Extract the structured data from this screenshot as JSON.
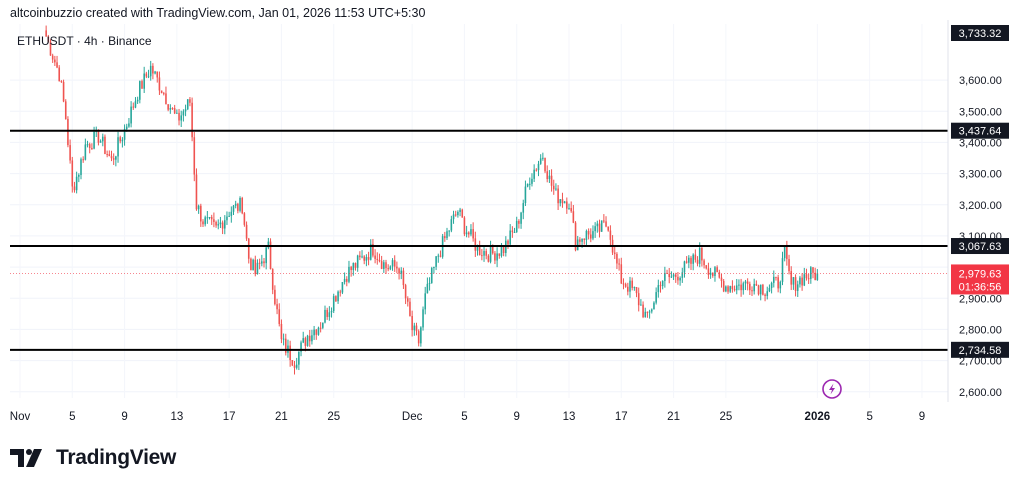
{
  "header": {
    "caption": "altcoinbuzzio created with TradingView.com, Jan 01, 2026 11:53 UTC+5:30"
  },
  "branding": {
    "name": "TradingView"
  },
  "icons": {
    "brand": "tradingview-logo-icon",
    "event": "lightning-bolt-icon"
  },
  "colors": {
    "up": "#26a69a",
    "down": "#ef5350",
    "level_line": "#000000",
    "last_price": "#f23645"
  },
  "chart_data": {
    "type": "candlestick",
    "symbol_label": "ETHUSDT · 4h · Binance",
    "timeframe": "4h",
    "ylim": [
      2580,
      3780
    ],
    "y_ticks": [
      2600,
      2700,
      2800,
      2900,
      3000,
      3100,
      3200,
      3300,
      3400,
      3500,
      3600
    ],
    "y_tick_labels": [
      "2,600.00",
      "2,700.00",
      "2,800.00",
      "2,900.00",
      "",
      "3,100.00",
      "3,200.00",
      "3,300.00",
      "3,400.00",
      "3,500.00",
      "3,600.00"
    ],
    "x_axis": {
      "start": "2025-11-01",
      "end": "2026-01-10",
      "ticks": [
        {
          "date": "2025-11-01",
          "label": "Nov"
        },
        {
          "date": "2025-11-05",
          "label": "5"
        },
        {
          "date": "2025-11-09",
          "label": "9"
        },
        {
          "date": "2025-11-13",
          "label": "13"
        },
        {
          "date": "2025-11-17",
          "label": "17"
        },
        {
          "date": "2025-11-21",
          "label": "21"
        },
        {
          "date": "2025-11-25",
          "label": "25"
        },
        {
          "date": "2025-12-01",
          "label": "Dec"
        },
        {
          "date": "2025-12-05",
          "label": "5"
        },
        {
          "date": "2025-12-09",
          "label": "9"
        },
        {
          "date": "2025-12-13",
          "label": "13"
        },
        {
          "date": "2025-12-17",
          "label": "17"
        },
        {
          "date": "2025-12-21",
          "label": "21"
        },
        {
          "date": "2025-12-25",
          "label": "25"
        },
        {
          "date": "2026-01-01",
          "label": "2026"
        },
        {
          "date": "2026-01-05",
          "label": "5"
        },
        {
          "date": "2026-01-09",
          "label": "9"
        }
      ]
    },
    "levels": [
      {
        "value": 3437.64,
        "label": "3,437.64"
      },
      {
        "value": 3067.63,
        "label": "3,067.63"
      },
      {
        "value": 2734.58,
        "label": "2,734.58"
      }
    ],
    "price_high_label": {
      "value": 3733.32,
      "label": "3,733.32"
    },
    "last_price": {
      "value": 2979.63,
      "label": "2,979.63",
      "countdown": "01:36:56"
    },
    "close_path": [
      [
        "2025-11-03",
        3740
      ],
      [
        "2025-11-04",
        3620
      ],
      [
        "2025-11-04T12:00",
        3480
      ],
      [
        "2025-11-05",
        3250
      ],
      [
        "2025-11-05T12:00",
        3310
      ],
      [
        "2025-11-06",
        3390
      ],
      [
        "2025-11-07",
        3420
      ],
      [
        "2025-11-08",
        3340
      ],
      [
        "2025-11-09",
        3440
      ],
      [
        "2025-11-10",
        3560
      ],
      [
        "2025-11-11",
        3640
      ],
      [
        "2025-11-12",
        3560
      ],
      [
        "2025-11-13",
        3470
      ],
      [
        "2025-11-14",
        3530
      ],
      [
        "2025-11-14T12:00",
        3200
      ],
      [
        "2025-11-15",
        3150
      ],
      [
        "2025-11-16",
        3120
      ],
      [
        "2025-11-17",
        3180
      ],
      [
        "2025-11-18",
        3200
      ],
      [
        "2025-11-18T12:00",
        3030
      ],
      [
        "2025-11-19",
        2980
      ],
      [
        "2025-11-20",
        3060
      ],
      [
        "2025-11-20T12:00",
        2900
      ],
      [
        "2025-11-21",
        2760
      ],
      [
        "2025-11-22",
        2700
      ],
      [
        "2025-11-23",
        2780
      ],
      [
        "2025-11-24",
        2820
      ],
      [
        "2025-11-25",
        2900
      ],
      [
        "2025-11-26",
        2980
      ],
      [
        "2025-11-27",
        3020
      ],
      [
        "2025-11-28",
        3060
      ],
      [
        "2025-11-29",
        3000
      ],
      [
        "2025-11-30",
        3000
      ],
      [
        "2025-12-01",
        2800
      ],
      [
        "2025-12-01T12:00",
        2760
      ],
      [
        "2025-12-02",
        2900
      ],
      [
        "2025-12-03",
        3040
      ],
      [
        "2025-12-04",
        3140
      ],
      [
        "2025-12-04T12:00",
        3180
      ],
      [
        "2025-12-05",
        3130
      ],
      [
        "2025-12-06",
        3060
      ],
      [
        "2025-12-07",
        3040
      ],
      [
        "2025-12-08",
        3060
      ],
      [
        "2025-12-09",
        3130
      ],
      [
        "2025-12-10",
        3290
      ],
      [
        "2025-12-11",
        3360
      ],
      [
        "2025-12-11T12:00",
        3280
      ],
      [
        "2025-12-12",
        3230
      ],
      [
        "2025-12-13",
        3210
      ],
      [
        "2025-12-13T12:00",
        3080
      ],
      [
        "2025-12-14",
        3100
      ],
      [
        "2025-12-15",
        3110
      ],
      [
        "2025-12-16",
        3140
      ],
      [
        "2025-12-16T12:00",
        3030
      ],
      [
        "2025-12-17",
        2960
      ],
      [
        "2025-12-18",
        2920
      ],
      [
        "2025-12-19",
        2830
      ],
      [
        "2025-12-20",
        2960
      ],
      [
        "2025-12-21",
        2970
      ],
      [
        "2025-12-22",
        3000
      ],
      [
        "2025-12-23",
        3040
      ],
      [
        "2025-12-24",
        2980
      ],
      [
        "2025-12-25",
        2940
      ],
      [
        "2025-12-26",
        2940
      ],
      [
        "2025-12-27",
        2950
      ],
      [
        "2025-12-28",
        2930
      ],
      [
        "2025-12-29",
        2950
      ],
      [
        "2025-12-29T12:00",
        3040
      ],
      [
        "2025-12-30",
        2940
      ],
      [
        "2025-12-31",
        2970
      ],
      [
        "2026-01-01",
        2979.63
      ]
    ]
  }
}
